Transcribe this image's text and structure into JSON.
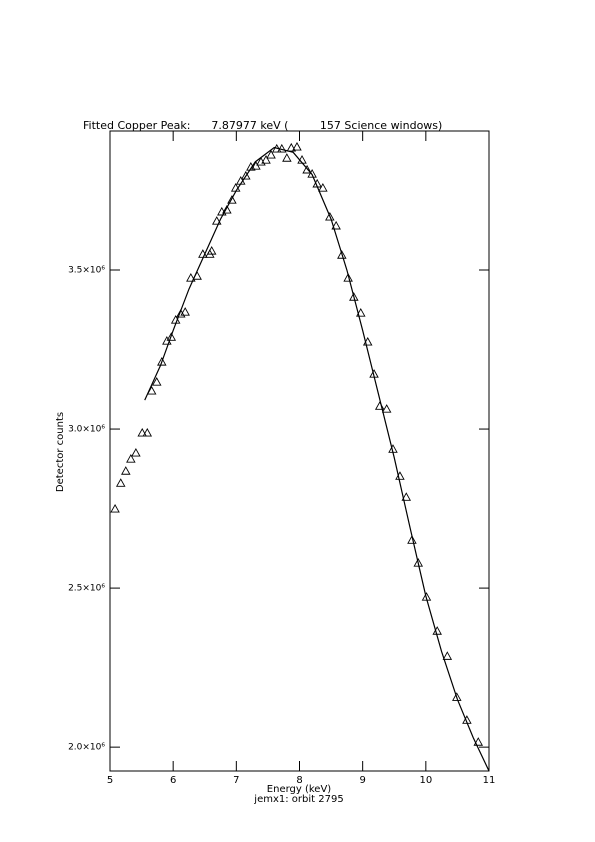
{
  "chart_data": {
    "type": "scatter",
    "title": "Fitted Copper Peak:      7.87977 keV (         157 Science windows)",
    "x_label": "Energy (keV)",
    "y_label": "Detector counts",
    "footer": "jemx1: orbit 2795",
    "xlim": [
      5,
      11
    ],
    "xticks": [
      5,
      6,
      7,
      8,
      9,
      10,
      11
    ],
    "ylim": [
      1925000,
      3937000
    ],
    "yticks": [
      {
        "value": 2000000,
        "label": "2.0×10⁶"
      },
      {
        "value": 2500000,
        "label": "2.5×10⁶"
      },
      {
        "value": 3000000,
        "label": "3.0×10⁶"
      },
      {
        "value": 3500000,
        "label": "3.5×10⁶"
      }
    ],
    "series": [
      {
        "marker": "triangle",
        "color": "#000000",
        "x": [
          5.08,
          5.17,
          5.25,
          5.33,
          5.41,
          5.51,
          5.59,
          5.66,
          5.74,
          5.82,
          5.9,
          5.97,
          6.04,
          6.12,
          6.19,
          6.28,
          6.38,
          6.47,
          6.58,
          6.61,
          6.69,
          6.77,
          6.85,
          6.93,
          6.99,
          7.07,
          7.15,
          7.23,
          7.31,
          7.39,
          7.47,
          7.55,
          7.64,
          7.72,
          7.8,
          7.87,
          7.96,
          8.04,
          8.12,
          8.2,
          8.28,
          8.37,
          8.48,
          8.58,
          8.67,
          8.77,
          8.86,
          8.97,
          9.08,
          9.18,
          9.27,
          9.38,
          9.48,
          9.59,
          9.69,
          9.78,
          9.88,
          10.01,
          10.18,
          10.34,
          10.49,
          10.65,
          10.83
        ],
        "values": [
          2749000,
          2830000,
          2868000,
          2906000,
          2925000,
          2988000,
          2988000,
          3120000,
          3148000,
          3211000,
          3277000,
          3289000,
          3343000,
          3362000,
          3368000,
          3475000,
          3481000,
          3550000,
          3550000,
          3560000,
          3654000,
          3683000,
          3689000,
          3720000,
          3758000,
          3780000,
          3796000,
          3824000,
          3827000,
          3840000,
          3846000,
          3862000,
          3881000,
          3881000,
          3852000,
          3884000,
          3887000,
          3846000,
          3815000,
          3802000,
          3771000,
          3758000,
          3667000,
          3639000,
          3547000,
          3475000,
          3415000,
          3365000,
          3274000,
          3173000,
          3072000,
          3063000,
          2937000,
          2852000,
          2786000,
          2651000,
          2579000,
          2472000,
          2365000,
          2286000,
          2157000,
          2085000,
          2016000
        ]
      },
      {
        "marker": "line",
        "color": "#000000",
        "x": [
          5.55,
          5.8,
          6.0,
          6.25,
          6.5,
          6.75,
          7.0,
          7.3,
          7.6,
          7.9,
          8.2,
          8.5,
          8.75,
          9.0,
          9.25,
          9.5,
          9.75,
          10.0,
          10.25,
          10.5,
          10.75,
          11.0
        ],
        "values": [
          3091000,
          3200000,
          3310000,
          3440000,
          3550000,
          3660000,
          3750000,
          3840000,
          3885000,
          3870000,
          3800000,
          3660000,
          3500000,
          3310000,
          3110000,
          2910000,
          2690000,
          2475000,
          2300000,
          2150000,
          2030000,
          1925000
        ]
      }
    ]
  }
}
